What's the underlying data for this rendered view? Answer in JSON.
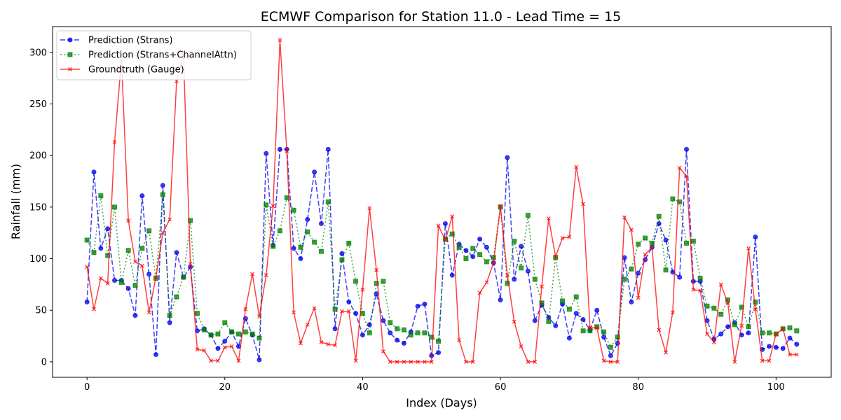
{
  "chart_data": {
    "type": "line",
    "title": "ECMWF Comparison for Station 11.0 - Lead Time = 15",
    "xlabel": "Index (Days)",
    "ylabel": "Rainfall (mm)",
    "xlim": [
      -5,
      108
    ],
    "ylim": [
      -15,
      325
    ],
    "xticks": [
      0,
      20,
      40,
      60,
      80,
      100
    ],
    "yticks": [
      0,
      50,
      100,
      150,
      200,
      250,
      300
    ],
    "grid": false,
    "legend_position": "top-left",
    "series": [
      {
        "name": "Prediction (Strans)",
        "color": "#0000ee",
        "line": "dashed",
        "marker": "circle",
        "values": [
          58,
          184,
          110,
          129,
          79,
          79,
          71,
          45,
          161,
          85,
          7,
          171,
          38,
          106,
          82,
          92,
          30,
          32,
          26,
          13,
          20,
          29,
          15,
          42,
          26,
          2,
          202,
          113,
          206,
          206,
          110,
          100,
          138,
          184,
          134,
          206,
          32,
          105,
          58,
          47,
          26,
          36,
          66,
          40,
          28,
          21,
          18,
          29,
          54,
          56,
          6,
          9,
          134,
          84,
          114,
          108,
          102,
          119,
          111,
          96,
          60,
          198,
          80,
          112,
          88,
          40,
          55,
          43,
          35,
          56,
          23,
          47,
          41,
          31,
          50,
          24,
          6,
          18,
          101,
          58,
          86,
          99,
          111,
          134,
          118,
          87,
          82,
          206,
          78,
          78,
          40,
          22,
          27,
          34,
          38,
          26,
          28,
          121,
          12,
          15,
          14,
          13,
          23,
          17
        ]
      },
      {
        "name": "Prediction (Strans+ChannelAttn)",
        "color": "#008000",
        "line": "dotted",
        "marker": "square",
        "values": [
          118,
          106,
          161,
          103,
          150,
          77,
          108,
          74,
          110,
          127,
          81,
          162,
          45,
          63,
          82,
          137,
          47,
          31,
          26,
          27,
          38,
          29,
          27,
          29,
          27,
          23,
          152,
          112,
          127,
          159,
          147,
          111,
          126,
          116,
          107,
          155,
          51,
          99,
          115,
          78,
          47,
          28,
          76,
          78,
          38,
          32,
          31,
          26,
          28,
          28,
          24,
          20,
          119,
          124,
          111,
          100,
          110,
          104,
          97,
          101,
          150,
          76,
          117,
          91,
          142,
          80,
          57,
          39,
          101,
          59,
          51,
          63,
          30,
          30,
          34,
          29,
          14,
          24,
          80,
          90,
          114,
          120,
          115,
          141,
          89,
          158,
          155,
          115,
          117,
          81,
          54,
          52,
          46,
          60,
          36,
          53,
          34,
          58,
          28,
          28,
          27,
          32,
          33,
          30
        ]
      },
      {
        "name": "Groundtruth (Gauge)",
        "color": "#ff0000",
        "line": "solid",
        "marker": "x",
        "values": [
          92,
          51,
          81,
          76,
          213,
          293,
          137,
          97,
          93,
          48,
          82,
          125,
          138,
          272,
          297,
          95,
          12,
          11,
          1,
          1,
          14,
          15,
          1,
          51,
          85,
          44,
          84,
          151,
          312,
          204,
          48,
          18,
          36,
          52,
          19,
          17,
          16,
          49,
          49,
          1,
          70,
          149,
          89,
          10,
          0,
          0,
          0,
          0,
          0,
          0,
          0,
          132,
          118,
          141,
          21,
          0,
          0,
          67,
          77,
          96,
          151,
          84,
          39,
          15,
          0,
          0,
          73,
          139,
          102,
          120,
          121,
          189,
          153,
          33,
          33,
          1,
          0,
          0,
          140,
          128,
          62,
          104,
          111,
          31,
          9,
          48,
          188,
          180,
          70,
          69,
          27,
          19,
          75,
          57,
          0,
          35,
          110,
          51,
          1,
          1,
          27,
          32,
          7,
          7
        ]
      }
    ]
  }
}
